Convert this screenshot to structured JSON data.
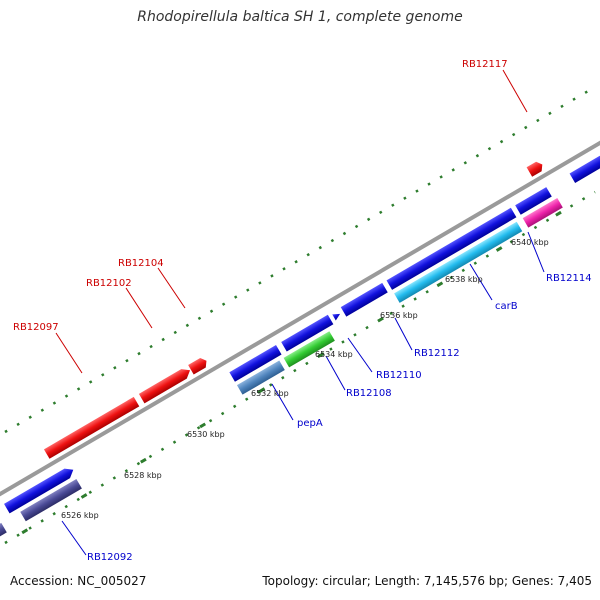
{
  "title": "Rhodopirellula baltica SH 1, complete genome",
  "footer": {
    "accession": "Accession: NC_005027",
    "summary": "Topology: circular; Length: 7,145,576 bp; Genes: 7,405"
  },
  "colors": {
    "backbone": "#999999",
    "tick": "#2e7d2e",
    "label_red": "#cc0000",
    "label_blue": "#0000cc",
    "gene_red": "#ee1111",
    "gene_blue": "#1111dd",
    "gene_green": "#33cc33",
    "gene_steel": "#4f84bd",
    "gene_cyan": "#22bbee",
    "gene_pink": "#ee22aa",
    "gene_slate": "#4a4a96"
  },
  "scale_labels": [
    "6526 kbp",
    "6528 kbp",
    "6530 kbp",
    "6532 kbp",
    "6534 kbp",
    "6536 kbp",
    "6538 kbp",
    "6540 kbp"
  ],
  "gene_labels": {
    "RB12117": "RB12117",
    "RB12104": "RB12104",
    "RB12102": "RB12102",
    "RB12097": "RB12097",
    "RB12114": "RB12114",
    "carB": "carB",
    "RB12112": "RB12112",
    "RB12110": "RB12110",
    "RB12108": "RB12108",
    "pepA": "pepA",
    "RB12092": "RB12092"
  }
}
